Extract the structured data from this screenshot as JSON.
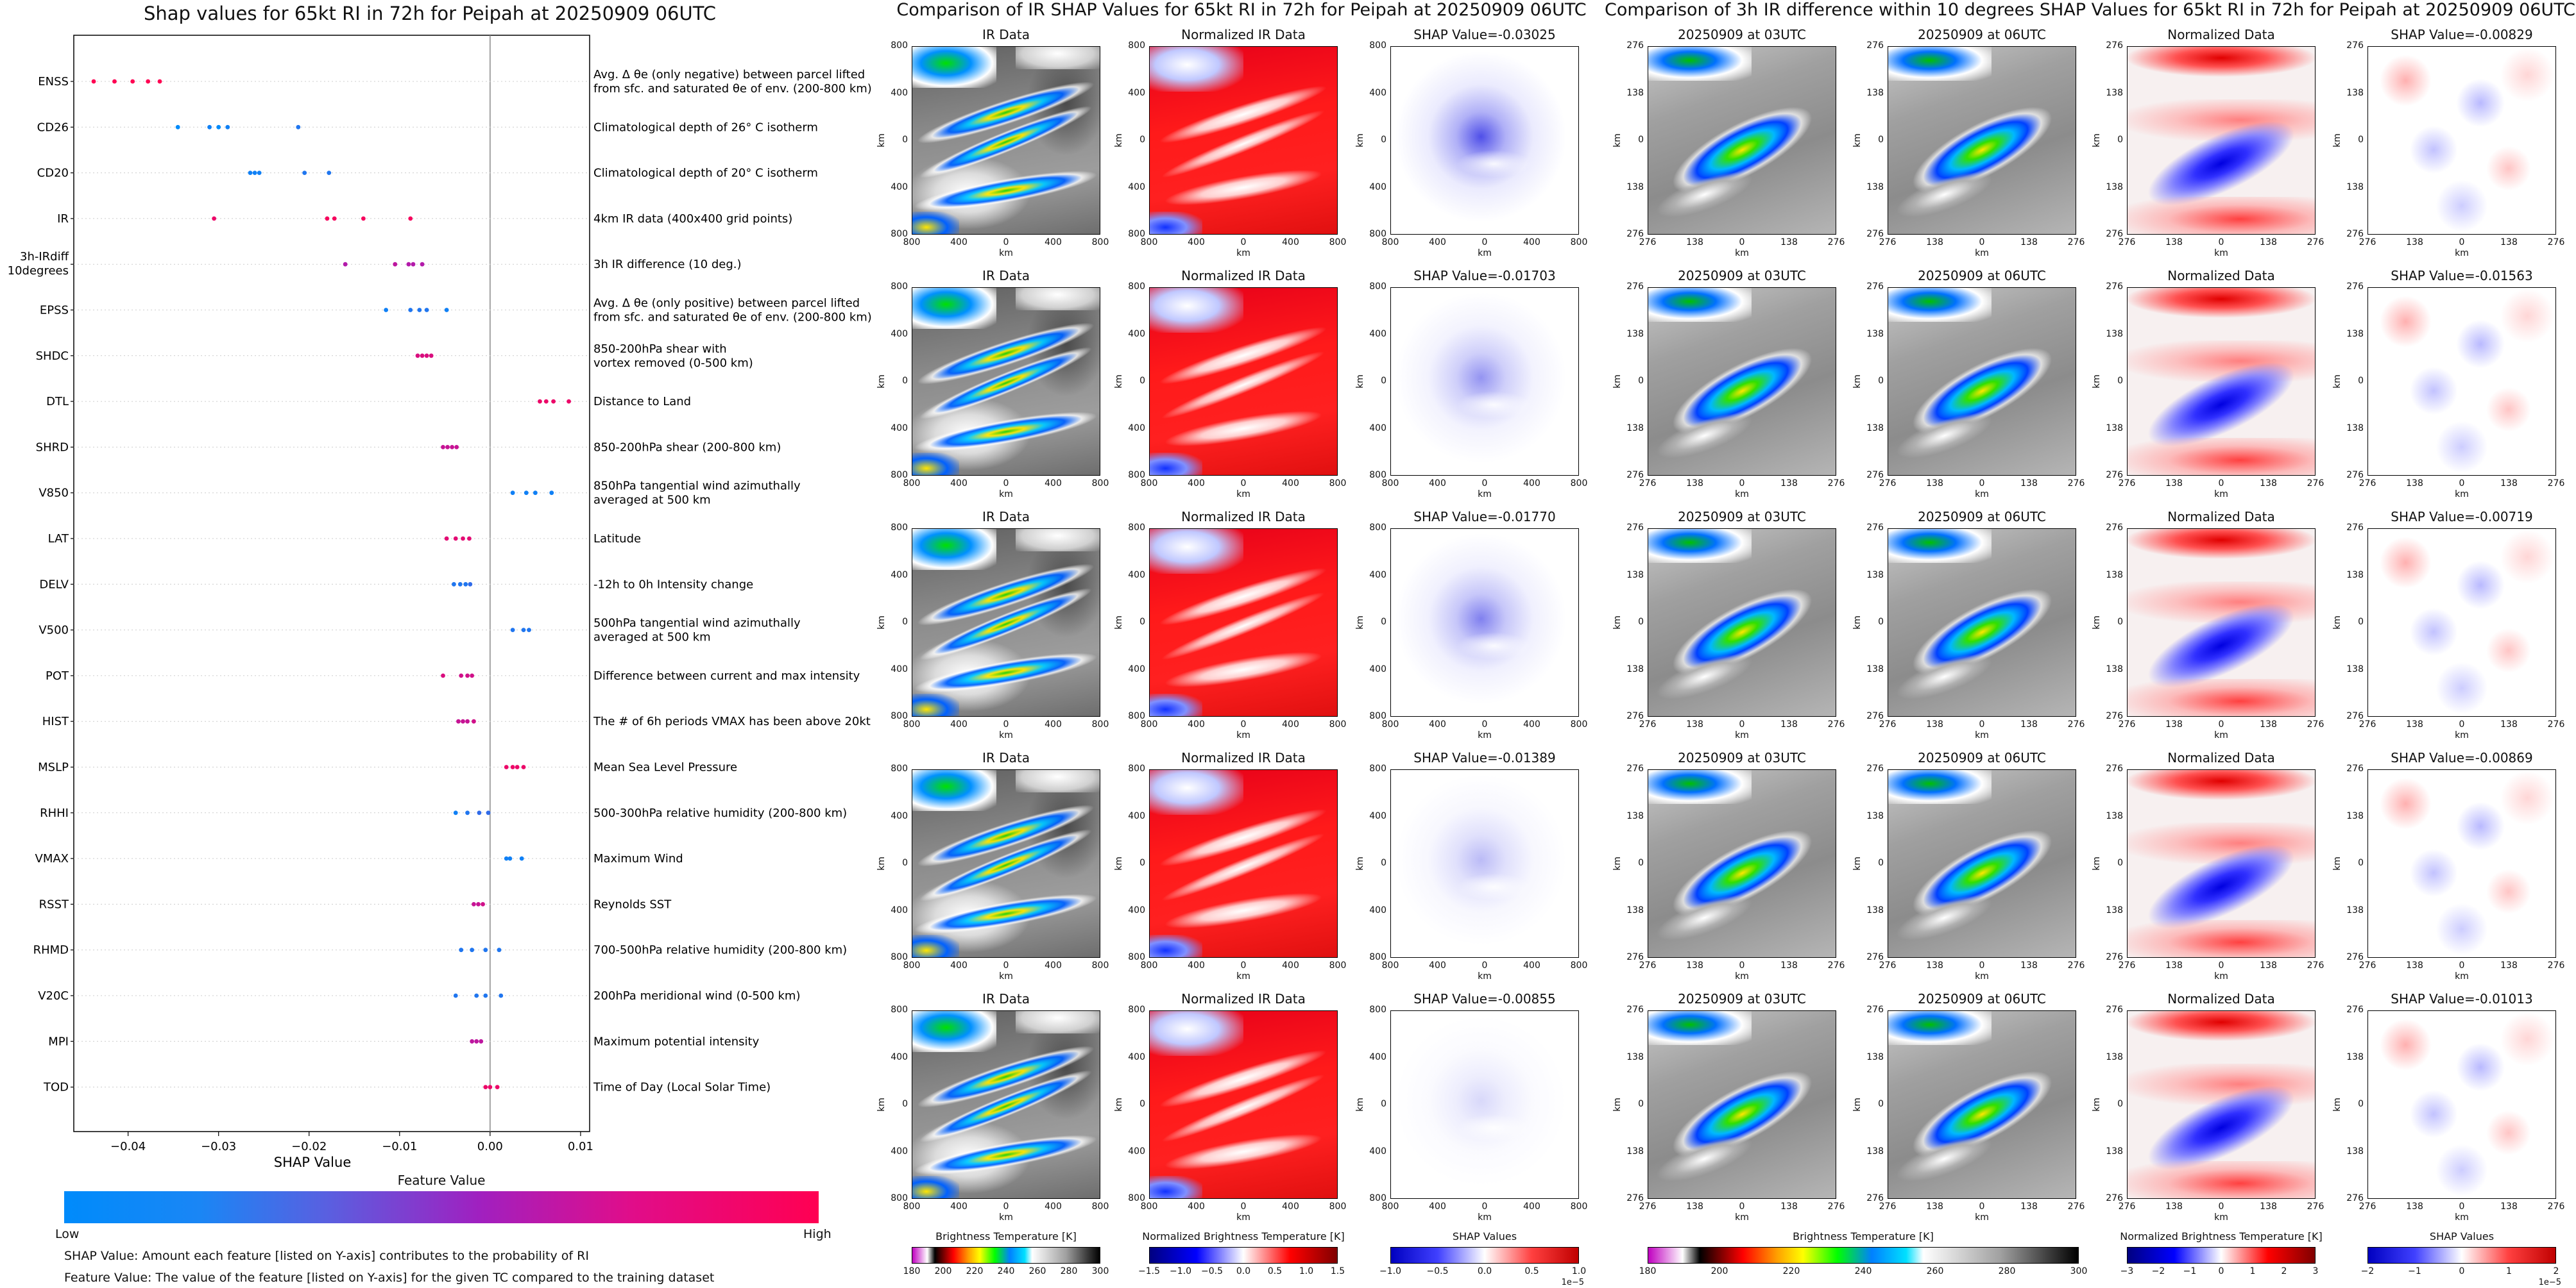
{
  "left": {
    "title": "Shap values for 65kt RI in 72h for Peipah at 20250909 06UTC",
    "xlabel": "SHAP Value",
    "colorbar_title": "Feature Value",
    "colorbar_low": "Low",
    "colorbar_high": "High",
    "note1": "SHAP Value: Amount each feature [listed on Y-axis] contributes to the probability of RI",
    "note2": "Feature Value: The value of the feature [listed on Y-axis] for the given TC compared to the training dataset"
  },
  "mid": {
    "title": "Comparison of IR SHAP Values for 65kt RI in 72h for Peipah at 20250909 06UTC",
    "col_titles": [
      "IR Data",
      "Normalized IR Data"
    ],
    "shap_titles": [
      "SHAP Value=-0.03025",
      "SHAP Value=-0.01703",
      "SHAP Value=-0.01770",
      "SHAP Value=-0.01389",
      "SHAP Value=-0.00855"
    ],
    "axis_unit": "km",
    "ticks": [
      "800",
      "400",
      "0",
      "400",
      "800"
    ],
    "cbar_ir_label": "Brightness Temperature [K]",
    "cbar_ir_ticks": [
      "180",
      "200",
      "220",
      "240",
      "260",
      "280",
      "300"
    ],
    "cbar_norm_label": "Normalized Brightness Temperature [K]",
    "cbar_norm_ticks": [
      "−1.5",
      "−1.0",
      "−0.5",
      "0.0",
      "0.5",
      "1.0",
      "1.5"
    ],
    "cbar_shap_label": "SHAP Values",
    "cbar_shap_ticks": [
      "−1.0",
      "−0.5",
      "0.0",
      "0.5",
      "1.0"
    ],
    "cbar_shap_exp": "1e−5"
  },
  "right": {
    "title": "Comparison of 3h IR difference within 10 degrees SHAP Values for 65kt RI in 72h for Peipah at 20250909 06UTC",
    "col_titles": [
      "20250909 at 03UTC",
      "20250909 at 06UTC",
      "Normalized Data"
    ],
    "shap_titles": [
      "SHAP Value=-0.00829",
      "SHAP Value=-0.01563",
      "SHAP Value=-0.00719",
      "SHAP Value=-0.00869",
      "SHAP Value=-0.01013"
    ],
    "axis_unit": "km",
    "ticks": [
      "276",
      "138",
      "0",
      "138",
      "276"
    ],
    "cbar_ir_label": "Brightness Temperature [K]",
    "cbar_ir_ticks": [
      "180",
      "200",
      "220",
      "240",
      "260",
      "280",
      "300"
    ],
    "cbar_norm_label": "Normalized Brightness Temperature [K]",
    "cbar_norm_ticks": [
      "−3",
      "−2",
      "−1",
      "0",
      "1",
      "2",
      "3"
    ],
    "cbar_shap_label": "SHAP Values",
    "cbar_shap_ticks": [
      "−2",
      "−1",
      "0",
      "1",
      "2"
    ],
    "cbar_shap_exp": "1e−5"
  },
  "colors": {
    "low": "#1e88e5",
    "high": "#ff0052",
    "mid": "#a020c0"
  },
  "chart_data": {
    "type": "scatter",
    "title": "Shap values for 65kt RI in 72h for Peipah at 20250909 06UTC",
    "xlabel": "SHAP Value",
    "xlim": [
      -0.046,
      0.011
    ],
    "xticks": [
      -0.04,
      -0.03,
      -0.02,
      -0.01,
      0.0,
      0.01
    ],
    "xtick_labels": [
      "−0.04",
      "−0.03",
      "−0.02",
      "−0.01",
      "0.00",
      "0.01"
    ],
    "features": [
      {
        "name": "ENSS",
        "desc": [
          "Avg. Δ θe (only negative) between parcel lifted",
          "from sfc. and saturated θe of env. (200-800 km)"
        ],
        "points": [
          [
            -0.0438,
            1.0
          ],
          [
            -0.0415,
            1.0
          ],
          [
            -0.0395,
            1.0
          ],
          [
            -0.0378,
            1.0
          ],
          [
            -0.0365,
            1.0
          ]
        ]
      },
      {
        "name": "CD26",
        "desc": [
          "Climatological depth of 26° C isotherm"
        ],
        "points": [
          [
            -0.0345,
            0.0
          ],
          [
            -0.031,
            0.05
          ],
          [
            -0.03,
            0.0
          ],
          [
            -0.029,
            0.05
          ],
          [
            -0.0212,
            0.1
          ]
        ]
      },
      {
        "name": "CD20",
        "desc": [
          "Climatological depth of 20° C isotherm"
        ],
        "points": [
          [
            -0.0265,
            0.05
          ],
          [
            -0.026,
            0.05
          ],
          [
            -0.0255,
            0.05
          ],
          [
            -0.0205,
            0.1
          ],
          [
            -0.0178,
            0.1
          ]
        ]
      },
      {
        "name": "IR",
        "desc": [
          "4km IR data (400x400 grid points)"
        ],
        "points": [
          [
            -0.0305,
            0.9
          ],
          [
            -0.018,
            0.95
          ],
          [
            -0.0172,
            0.95
          ],
          [
            -0.014,
            0.95
          ],
          [
            -0.0088,
            0.95
          ]
        ]
      },
      {
        "name": "3h-IRdiff",
        "name2": "10degrees",
        "desc": [
          "3h IR difference (10 deg.)"
        ],
        "points": [
          [
            -0.016,
            0.6
          ],
          [
            -0.0105,
            0.65
          ],
          [
            -0.009,
            0.6
          ],
          [
            -0.0085,
            0.6
          ],
          [
            -0.0075,
            0.6
          ]
        ]
      },
      {
        "name": "EPSS",
        "desc": [
          "Avg. Δ θe (only positive) between parcel lifted",
          "from sfc. and saturated θe of env. (200-800 km)"
        ],
        "points": [
          [
            -0.0115,
            0.05
          ],
          [
            -0.0088,
            0.1
          ],
          [
            -0.0078,
            0.1
          ],
          [
            -0.007,
            0.1
          ],
          [
            -0.0048,
            0.05
          ]
        ]
      },
      {
        "name": "SHDC",
        "desc": [
          "850-200hPa shear with",
          "vortex removed (0-500 km)"
        ],
        "points": [
          [
            -0.008,
            0.8
          ],
          [
            -0.0075,
            0.8
          ],
          [
            -0.007,
            0.8
          ],
          [
            -0.0065,
            0.8
          ]
        ]
      },
      {
        "name": "DTL",
        "desc": [
          "Distance to Land"
        ],
        "points": [
          [
            0.0055,
            0.9
          ],
          [
            0.0062,
            0.9
          ],
          [
            0.007,
            0.9
          ],
          [
            0.0087,
            0.9
          ]
        ]
      },
      {
        "name": "SHRD",
        "desc": [
          "850-200hPa shear (200-800 km)"
        ],
        "points": [
          [
            -0.0052,
            0.7
          ],
          [
            -0.0047,
            0.7
          ],
          [
            -0.0042,
            0.7
          ],
          [
            -0.0037,
            0.7
          ]
        ]
      },
      {
        "name": "V850",
        "desc": [
          "850hPa tangential wind azimuthally",
          "averaged at 500 km"
        ],
        "points": [
          [
            0.0025,
            0.05
          ],
          [
            0.004,
            0.05
          ],
          [
            0.005,
            0.05
          ],
          [
            0.0068,
            0.05
          ]
        ]
      },
      {
        "name": "LAT",
        "desc": [
          "Latitude"
        ],
        "points": [
          [
            -0.0048,
            0.85
          ],
          [
            -0.0038,
            0.85
          ],
          [
            -0.003,
            0.85
          ],
          [
            -0.0023,
            0.85
          ]
        ]
      },
      {
        "name": "DELV",
        "desc": [
          "-12h to 0h Intensity change"
        ],
        "points": [
          [
            -0.004,
            0.1
          ],
          [
            -0.0033,
            0.1
          ],
          [
            -0.0027,
            0.1
          ],
          [
            -0.0022,
            0.15
          ]
        ]
      },
      {
        "name": "V500",
        "desc": [
          "500hPa tangential wind azimuthally",
          "averaged at 500 km"
        ],
        "points": [
          [
            0.0025,
            0.1
          ],
          [
            0.0037,
            0.1
          ],
          [
            0.0043,
            0.1
          ]
        ]
      },
      {
        "name": "POT",
        "desc": [
          "Difference between current and max intensity"
        ],
        "points": [
          [
            -0.0052,
            0.8
          ],
          [
            -0.0032,
            0.75
          ],
          [
            -0.0025,
            0.75
          ],
          [
            -0.002,
            0.75
          ]
        ]
      },
      {
        "name": "HIST",
        "desc": [
          "The # of 6h periods VMAX has been above 20kt"
        ],
        "points": [
          [
            -0.0035,
            0.7
          ],
          [
            -0.003,
            0.7
          ],
          [
            -0.0025,
            0.7
          ],
          [
            -0.0018,
            0.75
          ]
        ]
      },
      {
        "name": "MSLP",
        "desc": [
          "Mean Sea Level Pressure"
        ],
        "points": [
          [
            0.0018,
            0.9
          ],
          [
            0.0025,
            0.9
          ],
          [
            0.003,
            0.9
          ],
          [
            0.0037,
            0.9
          ]
        ]
      },
      {
        "name": "RHHI",
        "desc": [
          "500-300hPa relative humidity (200-800 km)"
        ],
        "points": [
          [
            -0.0038,
            0.05
          ],
          [
            -0.0025,
            0.1
          ],
          [
            -0.0012,
            0.15
          ],
          [
            -0.0002,
            0.15
          ]
        ]
      },
      {
        "name": "VMAX",
        "desc": [
          "Maximum Wind"
        ],
        "points": [
          [
            0.0018,
            0.05
          ],
          [
            0.0022,
            0.05
          ],
          [
            0.0035,
            0.05
          ]
        ]
      },
      {
        "name": "RSST",
        "desc": [
          "Reynolds SST"
        ],
        "points": [
          [
            -0.0018,
            0.7
          ],
          [
            -0.0013,
            0.7
          ],
          [
            -0.0008,
            0.75
          ]
        ]
      },
      {
        "name": "RHMD",
        "desc": [
          "700-500hPa relative humidity (200-800 km)"
        ],
        "points": [
          [
            -0.0032,
            0.1
          ],
          [
            -0.002,
            0.1
          ],
          [
            -0.0005,
            0.1
          ],
          [
            0.001,
            0.1
          ]
        ]
      },
      {
        "name": "V20C",
        "desc": [
          "200hPa meridional wind (0-500 km)"
        ],
        "points": [
          [
            -0.0038,
            0.1
          ],
          [
            -0.0015,
            0.1
          ],
          [
            -0.0005,
            0.1
          ],
          [
            0.0012,
            0.1
          ]
        ]
      },
      {
        "name": "MPI",
        "desc": [
          "Maximum potential intensity"
        ],
        "points": [
          [
            -0.002,
            0.65
          ],
          [
            -0.0015,
            0.65
          ],
          [
            -0.001,
            0.65
          ]
        ]
      },
      {
        "name": "TOD",
        "desc": [
          "Time of Day (Local Solar Time)"
        ],
        "points": [
          [
            -0.0005,
            0.9
          ],
          [
            0.0,
            0.9
          ],
          [
            0.0008,
            0.9
          ]
        ]
      }
    ]
  }
}
